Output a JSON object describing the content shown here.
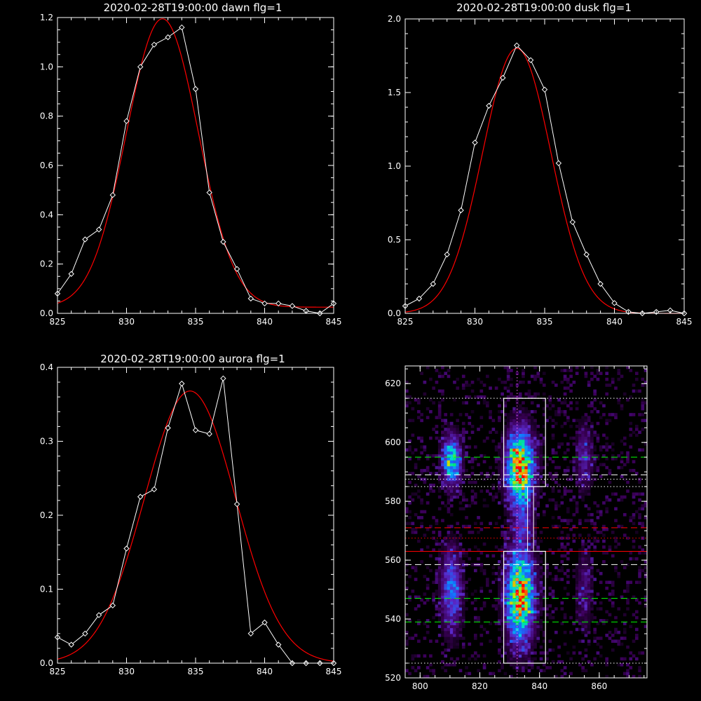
{
  "colors": {
    "background": "#000000",
    "axes": "#ffffff",
    "observed": "#ffffff",
    "fit": "#ff0000",
    "green_line": "#00ff00",
    "red_line": "#ff0000"
  },
  "chart_data": [
    {
      "type": "line",
      "title": "2020-02-28T19:00:00 dawn flg=1",
      "xlim": [
        825,
        845
      ],
      "ylim": [
        0,
        1.2
      ],
      "xticks": [
        825,
        830,
        835,
        840,
        845
      ],
      "xtick_labels": [
        "825",
        "830",
        "835",
        "840",
        "845"
      ],
      "yticks": [
        0,
        0.2,
        0.4,
        0.6,
        0.8,
        1.0,
        1.2
      ],
      "ytick_labels": [
        "0.0",
        "0.2",
        "0.4",
        "0.6",
        "0.8",
        "1.0",
        "1.2"
      ],
      "series": [
        {
          "role": "observed",
          "marker": "diamond",
          "x": [
            825,
            826,
            827,
            828,
            829,
            830,
            831,
            832,
            833,
            834,
            835,
            836,
            837,
            838,
            839,
            840,
            841,
            842,
            843,
            844,
            845
          ],
          "y": [
            0.08,
            0.16,
            0.3,
            0.34,
            0.48,
            0.78,
            1.0,
            1.09,
            1.12,
            1.16,
            0.91,
            0.49,
            0.29,
            0.18,
            0.06,
            0.04,
            0.04,
            0.03,
            0.01,
            0.0,
            0.04
          ]
        },
        {
          "role": "fit",
          "curve": "gaussian",
          "amplitude": 1.17,
          "center": 832.6,
          "sigma": 2.6,
          "baseline": 0.025
        }
      ]
    },
    {
      "type": "line",
      "title": "2020-02-28T19:00:00 dusk flg=1",
      "xlim": [
        825,
        845
      ],
      "ylim": [
        0,
        2.0
      ],
      "xticks": [
        825,
        830,
        835,
        840,
        845
      ],
      "xtick_labels": [
        "825",
        "830",
        "835",
        "840",
        "845"
      ],
      "yticks": [
        0,
        0.5,
        1.0,
        1.5,
        2.0
      ],
      "ytick_labels": [
        "0.0",
        "0.5",
        "1.0",
        "1.5",
        "2.0"
      ],
      "series": [
        {
          "role": "observed",
          "marker": "diamond",
          "x": [
            825,
            826,
            827,
            828,
            829,
            830,
            831,
            832,
            833,
            834,
            835,
            836,
            837,
            838,
            839,
            840,
            841,
            842,
            843,
            844,
            845
          ],
          "y": [
            0.05,
            0.1,
            0.2,
            0.4,
            0.7,
            1.16,
            1.41,
            1.6,
            1.82,
            1.72,
            1.52,
            1.02,
            0.62,
            0.4,
            0.2,
            0.07,
            0.01,
            0.0,
            0.01,
            0.02,
            0.0
          ]
        },
        {
          "role": "fit",
          "curve": "gaussian",
          "amplitude": 1.8,
          "center": 833.0,
          "sigma": 2.45,
          "baseline": 0.0
        }
      ]
    },
    {
      "type": "line",
      "title": "2020-02-28T19:00:00 aurora flg=1",
      "xlim": [
        825,
        845
      ],
      "ylim": [
        0,
        0.4
      ],
      "xticks": [
        825,
        830,
        835,
        840,
        845
      ],
      "xtick_labels": [
        "825",
        "830",
        "835",
        "840",
        "845"
      ],
      "yticks": [
        0,
        0.1,
        0.2,
        0.3,
        0.4
      ],
      "ytick_labels": [
        "0.0",
        "0.1",
        "0.2",
        "0.3",
        "0.4"
      ],
      "series": [
        {
          "role": "observed",
          "marker": "diamond",
          "x": [
            825,
            826,
            827,
            828,
            829,
            830,
            831,
            832,
            833,
            834,
            835,
            836,
            837,
            838,
            839,
            840,
            841,
            842,
            843,
            844,
            845
          ],
          "y": [
            0.035,
            0.025,
            0.04,
            0.065,
            0.078,
            0.155,
            0.225,
            0.235,
            0.318,
            0.378,
            0.315,
            0.31,
            0.385,
            0.215,
            0.04,
            0.055,
            0.025,
            0.0,
            0.0,
            0.0,
            0.0
          ]
        },
        {
          "role": "fit",
          "curve": "gaussian",
          "amplitude": 0.368,
          "center": 834.6,
          "sigma": 3.3,
          "baseline": 0.0
        }
      ]
    },
    {
      "type": "heatmap",
      "xlim": [
        795,
        876
      ],
      "ylim": [
        520,
        626
      ],
      "xticks": [
        800,
        820,
        840,
        860
      ],
      "xtick_labels": [
        "800",
        "820",
        "840",
        "860"
      ],
      "yticks": [
        520,
        540,
        560,
        580,
        600,
        620
      ],
      "ytick_labels": [
        "520",
        "540",
        "560",
        "580",
        "600",
        "620"
      ],
      "blobs": [
        {
          "x": 833.5,
          "y": 591.5,
          "sx": 3.2,
          "sy": 9,
          "amp": 1.0
        },
        {
          "x": 833.5,
          "y": 548,
          "sx": 3.3,
          "sy": 11,
          "amp": 0.95
        },
        {
          "x": 810.5,
          "y": 594,
          "sx": 2.2,
          "sy": 6,
          "amp": 0.7
        },
        {
          "x": 810.5,
          "y": 550,
          "sx": 2.5,
          "sy": 10,
          "amp": 0.5
        },
        {
          "x": 855,
          "y": 595,
          "sx": 2.0,
          "sy": 8,
          "amp": 0.3
        },
        {
          "x": 855,
          "y": 550,
          "sx": 2.0,
          "sy": 10,
          "amp": 0.22
        },
        {
          "x": 835,
          "y": 572,
          "sx": 2.0,
          "sy": 4,
          "amp": 0.25
        }
      ],
      "rectangles": [
        {
          "x0": 828,
          "x1": 842,
          "y0": 585,
          "y1": 615
        },
        {
          "x0": 828,
          "x1": 842,
          "y0": 525,
          "y1": 563
        }
      ],
      "vertical_lines": [
        {
          "x": 832.5,
          "style": "dotted",
          "color": "#ff66ff"
        },
        {
          "x": 836,
          "style": "solid",
          "color": "#ffffff",
          "y0": 563,
          "y1": 585
        },
        {
          "x": 838,
          "style": "solid",
          "color": "#ffffff",
          "y0": 563,
          "y1": 585
        }
      ],
      "horizontal_lines": [
        {
          "y": 615,
          "style": "dotted",
          "color": "#ffffff"
        },
        {
          "y": 595,
          "style": "dashed",
          "color": "#00ff00"
        },
        {
          "y": 589,
          "style": "dashed",
          "color": "#ffffff"
        },
        {
          "y": 587.5,
          "style": "dotted",
          "color": "#ffffff"
        },
        {
          "y": 585,
          "style": "dotted",
          "color": "#ffffff"
        },
        {
          "y": 571,
          "style": "dashed",
          "color": "#ff0000"
        },
        {
          "y": 567.5,
          "style": "dotted",
          "color": "#ff0000"
        },
        {
          "y": 563,
          "style": "solid",
          "color": "#ff0000"
        },
        {
          "y": 558.5,
          "style": "dashed",
          "color": "#ffffff"
        },
        {
          "y": 547,
          "style": "dashed",
          "color": "#00ff00"
        },
        {
          "y": 539,
          "style": "dashed",
          "color": "#00ff00"
        },
        {
          "y": 525,
          "style": "dotted",
          "color": "#ffffff"
        }
      ]
    }
  ]
}
